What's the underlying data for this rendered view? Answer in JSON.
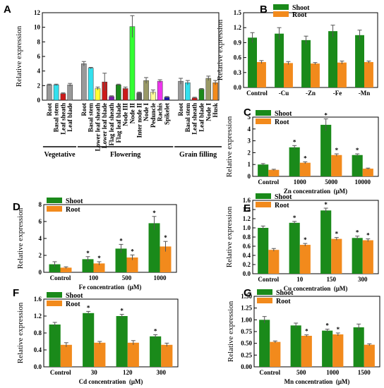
{
  "colors": {
    "shoot": "#1a8a1a",
    "root": "#f28a1c",
    "axis": "#000000"
  },
  "chart_data": [
    {
      "id": "A",
      "panel_label": "A",
      "type": "bar",
      "ylabel": "Relative expression",
      "ylim": [
        0,
        12
      ],
      "yticks": [
        0,
        2,
        4,
        6,
        8,
        10,
        12
      ],
      "categories": [
        "Root",
        "Basal stem",
        "Leaf sheath",
        "Leaf blade",
        "Root",
        "Basal stem",
        "Lower leaf sheath",
        "Lower leaf blade",
        "Flag leaf sheath",
        "Flag leaf blade",
        "Node III",
        "Node II",
        "Inter node II",
        "Node I",
        "Peduncle",
        "Rachis",
        "Spikelet",
        "Root",
        "Basal stem",
        "Leaf sheath",
        "Leaf blade",
        "Node I",
        "Husk"
      ],
      "values": [
        2.1,
        2.1,
        0.9,
        2.1,
        5.0,
        4.4,
        1.6,
        2.5,
        0.5,
        2.1,
        1.6,
        10.1,
        1.0,
        2.7,
        1.1,
        2.6,
        0.4,
        2.6,
        2.4,
        0.3,
        1.5,
        3.0,
        2.4
      ],
      "errors": [
        0.1,
        0.1,
        0.1,
        0.2,
        0.3,
        0.1,
        0.2,
        1.2,
        0.1,
        0.1,
        0.2,
        1.5,
        0.1,
        0.4,
        0.3,
        0.2,
        0.1,
        0.4,
        0.3,
        0.1,
        0.1,
        0.3,
        0.3
      ],
      "bar_colors": [
        "#999999",
        "#33e0ee",
        "#cc1a1a",
        "#999999",
        "#999999",
        "#33e0ee",
        "#ffff33",
        "#cc1a1a",
        "#7a1fa8",
        "#1a8a1a",
        "#cc1a1a",
        "#33ff33",
        "#555555",
        "#999966",
        "#ffff99",
        "#ee33ee",
        "#1a1aaa",
        "#999999",
        "#33e0ee",
        "#cc1a1a",
        "#1a8a1a",
        "#999966",
        "#f28a1c"
      ],
      "groups": [
        {
          "label": "Vegetative",
          "start": 0,
          "end": 3
        },
        {
          "label": "Flowering",
          "start": 4,
          "end": 16
        },
        {
          "label": "Grain filling",
          "start": 17,
          "end": 22
        }
      ]
    },
    {
      "id": "B",
      "panel_label": "B",
      "type": "bar",
      "ylabel": "Relative expression",
      "xlabel": "",
      "ylim": [
        0,
        1.5
      ],
      "yticks": [
        0.0,
        0.3,
        0.6,
        0.9,
        1.2,
        1.5
      ],
      "categories": [
        "Control",
        "-Cu",
        "-Zn",
        "-Fe",
        "-Mn"
      ],
      "series": [
        {
          "name": "Shoot",
          "values": [
            1.0,
            1.08,
            0.95,
            1.13,
            1.05
          ],
          "errors": [
            0.1,
            0.12,
            0.08,
            0.12,
            0.1
          ]
        },
        {
          "name": "Root",
          "values": [
            0.51,
            0.49,
            0.48,
            0.5,
            0.51
          ],
          "errors": [
            0.03,
            0.03,
            0.02,
            0.03,
            0.02
          ]
        }
      ],
      "stars": []
    },
    {
      "id": "C",
      "panel_label": "C",
      "type": "bar",
      "ylabel": "Relative expression",
      "xlabel": "Zn concentration  (μM)",
      "ylim": [
        0,
        5
      ],
      "yticks": [
        0,
        1,
        2,
        3,
        4,
        5
      ],
      "categories": [
        "Control",
        "1000",
        "5000",
        "10000"
      ],
      "series": [
        {
          "name": "Shoot",
          "values": [
            1.0,
            2.45,
            4.35,
            1.8
          ],
          "errors": [
            0.08,
            0.15,
            0.5,
            0.1
          ]
        },
        {
          "name": "Root",
          "values": [
            0.55,
            1.15,
            1.8,
            0.65
          ],
          "errors": [
            0.05,
            0.08,
            0.1,
            0.05
          ]
        }
      ],
      "stars": [
        [
          false,
          true,
          true,
          true
        ],
        [
          false,
          true,
          true,
          false
        ]
      ]
    },
    {
      "id": "D",
      "panel_label": "D",
      "type": "bar",
      "ylabel": "Relative expression",
      "xlabel": "Fe concentration  (μM)",
      "ylim": [
        0,
        8
      ],
      "yticks": [
        0,
        2,
        4,
        6,
        8
      ],
      "categories": [
        "Control",
        "100",
        "500",
        "1000"
      ],
      "series": [
        {
          "name": "Shoot",
          "values": [
            0.95,
            1.55,
            2.8,
            5.8
          ],
          "errors": [
            0.3,
            0.3,
            0.5,
            0.8
          ]
        },
        {
          "name": "Root",
          "values": [
            0.55,
            1.05,
            1.75,
            3.05
          ],
          "errors": [
            0.1,
            0.2,
            0.3,
            0.6
          ]
        }
      ],
      "stars": [
        [
          false,
          true,
          true,
          true
        ],
        [
          false,
          true,
          true,
          true
        ]
      ]
    },
    {
      "id": "E",
      "panel_label": "E",
      "type": "bar",
      "ylabel": "Relative expression",
      "xlabel": "Cu concentration  (μM)",
      "ylim": [
        0,
        1.6
      ],
      "yticks": [
        0.0,
        0.2,
        0.4,
        0.6,
        0.8,
        1.0,
        1.2,
        1.4,
        1.6
      ],
      "categories": [
        "Control",
        "10",
        "150",
        "300"
      ],
      "series": [
        {
          "name": "Shoot",
          "values": [
            1.0,
            1.11,
            1.38,
            0.78
          ],
          "errors": [
            0.04,
            0.03,
            0.05,
            0.04
          ]
        },
        {
          "name": "Root",
          "values": [
            0.52,
            0.63,
            0.76,
            0.73
          ],
          "errors": [
            0.03,
            0.03,
            0.03,
            0.03
          ]
        }
      ],
      "stars": [
        [
          false,
          true,
          true,
          true
        ],
        [
          false,
          true,
          true,
          true
        ]
      ]
    },
    {
      "id": "F",
      "panel_label": "F",
      "type": "bar",
      "ylabel": "Relative expression",
      "xlabel": "Cd concentration  (μM)",
      "ylim": [
        0,
        1.6
      ],
      "yticks": [
        0.0,
        0.4,
        0.8,
        1.2,
        1.6
      ],
      "categories": [
        "Control",
        "30",
        "120",
        "300"
      ],
      "series": [
        {
          "name": "Shoot",
          "values": [
            1.0,
            1.27,
            1.2,
            0.72
          ],
          "errors": [
            0.05,
            0.04,
            0.04,
            0.04
          ]
        },
        {
          "name": "Root",
          "values": [
            0.52,
            0.57,
            0.57,
            0.52
          ],
          "errors": [
            0.05,
            0.03,
            0.05,
            0.04
          ]
        }
      ],
      "stars": [
        [
          false,
          true,
          true,
          true
        ],
        [
          false,
          false,
          false,
          false
        ]
      ]
    },
    {
      "id": "G",
      "panel_label": "G",
      "type": "bar",
      "ylabel": "Relative expression",
      "xlabel": "Mn concentration  (μM)",
      "ylim": [
        0,
        1.5
      ],
      "yticks": [
        0.0,
        0.25,
        0.5,
        0.75,
        1.0,
        1.25,
        1.5
      ],
      "ytick_labels": [
        "0.00",
        "0.25",
        "0.50",
        "0.75",
        "1.00",
        "1.25",
        "1.50"
      ],
      "categories": [
        "Control",
        "500",
        "1000",
        "1500"
      ],
      "series": [
        {
          "name": "Shoot",
          "values": [
            1.0,
            0.88,
            0.77,
            0.84
          ],
          "errors": [
            0.07,
            0.05,
            0.03,
            0.07
          ]
        },
        {
          "name": "Root",
          "values": [
            0.53,
            0.66,
            0.69,
            0.47
          ],
          "errors": [
            0.02,
            0.02,
            0.03,
            0.02
          ]
        }
      ],
      "stars": [
        [
          false,
          false,
          true,
          false
        ],
        [
          false,
          true,
          true,
          false
        ]
      ]
    }
  ]
}
